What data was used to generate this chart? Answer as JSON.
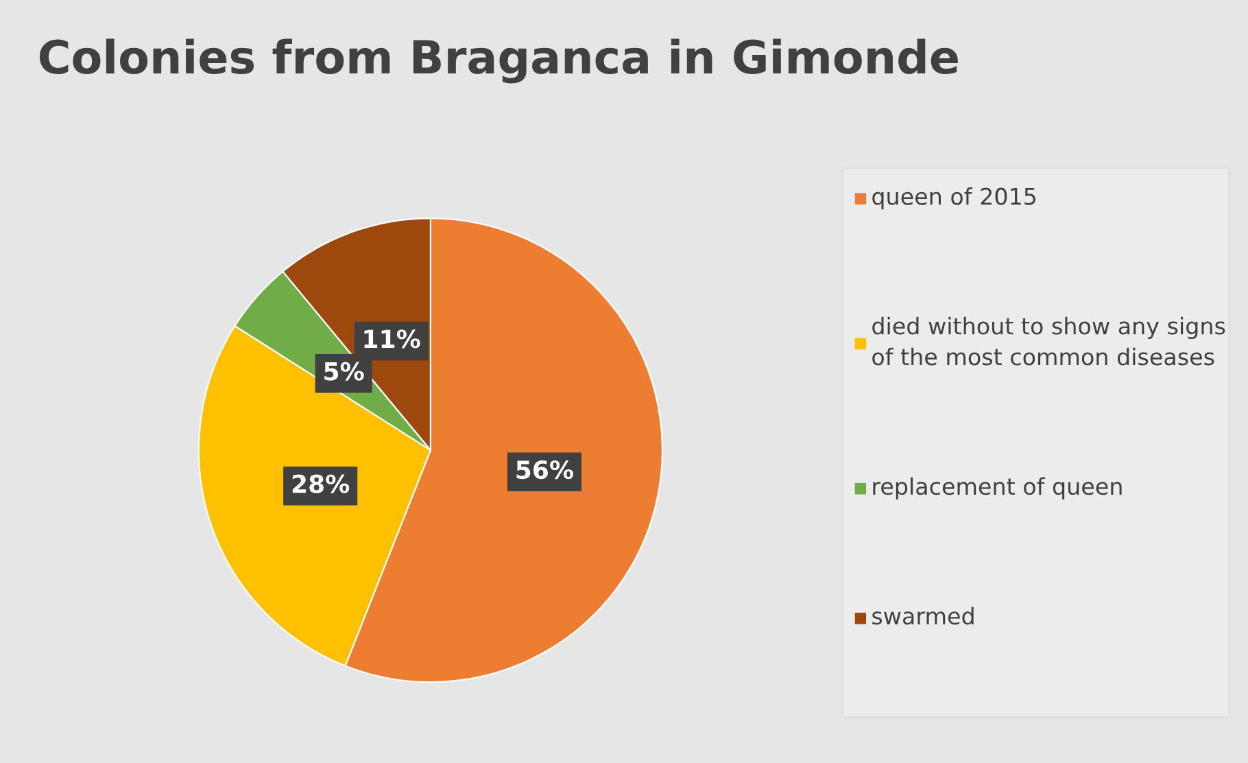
{
  "chart_data": {
    "type": "pie",
    "title": "Colonies from Braganca in Gimonde",
    "categories": [
      "queen of 2015",
      "died without to show any signs of the most common diseases",
      "replacement of queen",
      "swarmed"
    ],
    "values": [
      56,
      28,
      5,
      11
    ],
    "colors": [
      "#ed7d31",
      "#ffc000",
      "#70ad47",
      "#9e480e"
    ],
    "value_labels": [
      "56%",
      "28%",
      "5%",
      "11%"
    ],
    "legend": "right"
  }
}
